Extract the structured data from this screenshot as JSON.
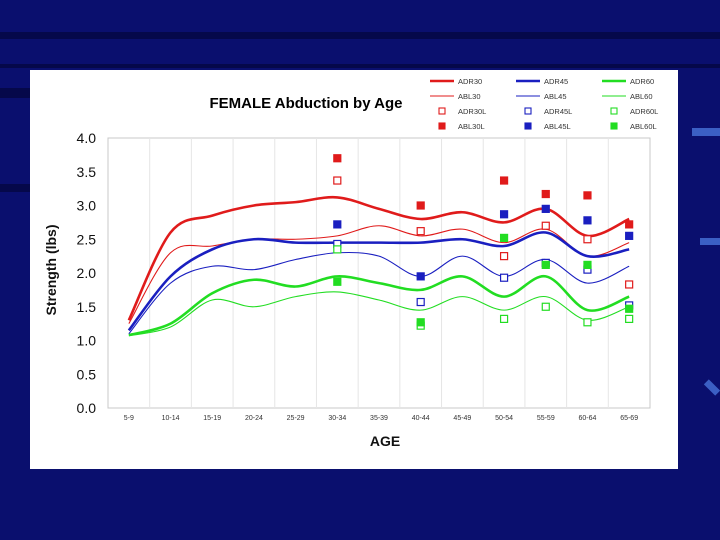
{
  "colors": {
    "red": "#e01b1b",
    "blue": "#1a1fc0",
    "green": "#22dd22",
    "background": "#0a0f6e"
  },
  "chart_data": {
    "type": "line",
    "title": "FEMALE Abduction by Age",
    "xlabel": "AGE",
    "ylabel": "Strength (lbs)",
    "ylim": [
      0,
      4
    ],
    "yticks": [
      "0.0",
      "0.5",
      "1.0",
      "1.5",
      "2.0",
      "2.5",
      "3.0",
      "3.5",
      "4.0"
    ],
    "categories": [
      "5-9",
      "10-14",
      "15-19",
      "20-24",
      "25-29",
      "30-34",
      "35-39",
      "40-44",
      "45-49",
      "50-54",
      "55-59",
      "60-64",
      "65-69"
    ],
    "legend_position": "top-right",
    "series": [
      {
        "name": "ADR30",
        "color": "#e01b1b",
        "style": "thick",
        "values": [
          1.3,
          2.6,
          2.85,
          3.0,
          3.05,
          3.12,
          2.95,
          2.8,
          2.9,
          2.75,
          2.95,
          2.55,
          2.8
        ]
      },
      {
        "name": "ABL30",
        "color": "#e01b1b",
        "style": "thin",
        "values": [
          1.25,
          2.3,
          2.4,
          2.5,
          2.5,
          2.55,
          2.7,
          2.55,
          2.65,
          2.45,
          2.65,
          2.25,
          2.45
        ]
      },
      {
        "name": "ADR45",
        "color": "#1a1fc0",
        "style": "thick",
        "values": [
          1.15,
          1.95,
          2.35,
          2.5,
          2.45,
          2.45,
          2.45,
          2.45,
          2.5,
          2.4,
          2.6,
          2.25,
          2.35
        ]
      },
      {
        "name": "ABL45",
        "color": "#1a1fc0",
        "style": "thin",
        "values": [
          1.1,
          1.85,
          2.1,
          2.05,
          2.2,
          2.3,
          2.25,
          1.95,
          2.25,
          1.95,
          2.2,
          1.85,
          2.1
        ]
      },
      {
        "name": "ADR60",
        "color": "#22dd22",
        "style": "thick",
        "values": [
          1.08,
          1.25,
          1.7,
          1.9,
          1.8,
          1.95,
          1.85,
          1.75,
          1.95,
          1.65,
          1.95,
          1.45,
          1.65
        ]
      },
      {
        "name": "ABL60",
        "color": "#22dd22",
        "style": "thin",
        "values": [
          1.07,
          1.2,
          1.6,
          1.5,
          1.65,
          1.72,
          1.6,
          1.45,
          1.65,
          1.45,
          1.65,
          1.3,
          1.5
        ]
      },
      {
        "name": "ADR30L",
        "color": "#e01b1b",
        "marker": "open-square",
        "points": [
          [
            "30-34",
            3.37
          ],
          [
            "40-44",
            2.62
          ],
          [
            "50-54",
            2.25
          ],
          [
            "55-59",
            2.7
          ],
          [
            "60-64",
            2.5
          ],
          [
            "65-69",
            1.83
          ]
        ]
      },
      {
        "name": "ABL30L",
        "color": "#e01b1b",
        "marker": "filled-square",
        "points": [
          [
            "30-34",
            3.7
          ],
          [
            "40-44",
            3.0
          ],
          [
            "50-54",
            3.37
          ],
          [
            "55-59",
            3.17
          ],
          [
            "60-64",
            3.15
          ],
          [
            "65-69",
            2.72
          ]
        ]
      },
      {
        "name": "ADR45L",
        "color": "#1a1fc0",
        "marker": "open-square",
        "points": [
          [
            "30-34",
            2.43
          ],
          [
            "40-44",
            1.57
          ],
          [
            "50-54",
            1.93
          ],
          [
            "55-59",
            2.15
          ],
          [
            "60-64",
            2.05
          ],
          [
            "65-69",
            1.52
          ]
        ]
      },
      {
        "name": "ABL45L",
        "color": "#1a1fc0",
        "marker": "filled-square",
        "points": [
          [
            "30-34",
            2.72
          ],
          [
            "40-44",
            1.95
          ],
          [
            "50-54",
            2.87
          ],
          [
            "55-59",
            2.95
          ],
          [
            "60-64",
            2.78
          ],
          [
            "65-69",
            2.55
          ]
        ]
      },
      {
        "name": "ADR60L",
        "color": "#22dd22",
        "marker": "open-square",
        "points": [
          [
            "30-34",
            2.35
          ],
          [
            "40-44",
            1.22
          ],
          [
            "50-54",
            1.32
          ],
          [
            "55-59",
            1.5
          ],
          [
            "60-64",
            1.27
          ],
          [
            "65-69",
            1.32
          ]
        ]
      },
      {
        "name": "ABL60L",
        "color": "#22dd22",
        "marker": "filled-square",
        "points": [
          [
            "30-34",
            1.87
          ],
          [
            "40-44",
            1.27
          ],
          [
            "50-54",
            2.52
          ],
          [
            "55-59",
            2.12
          ],
          [
            "60-64",
            2.12
          ],
          [
            "65-69",
            1.47
          ]
        ]
      }
    ]
  }
}
